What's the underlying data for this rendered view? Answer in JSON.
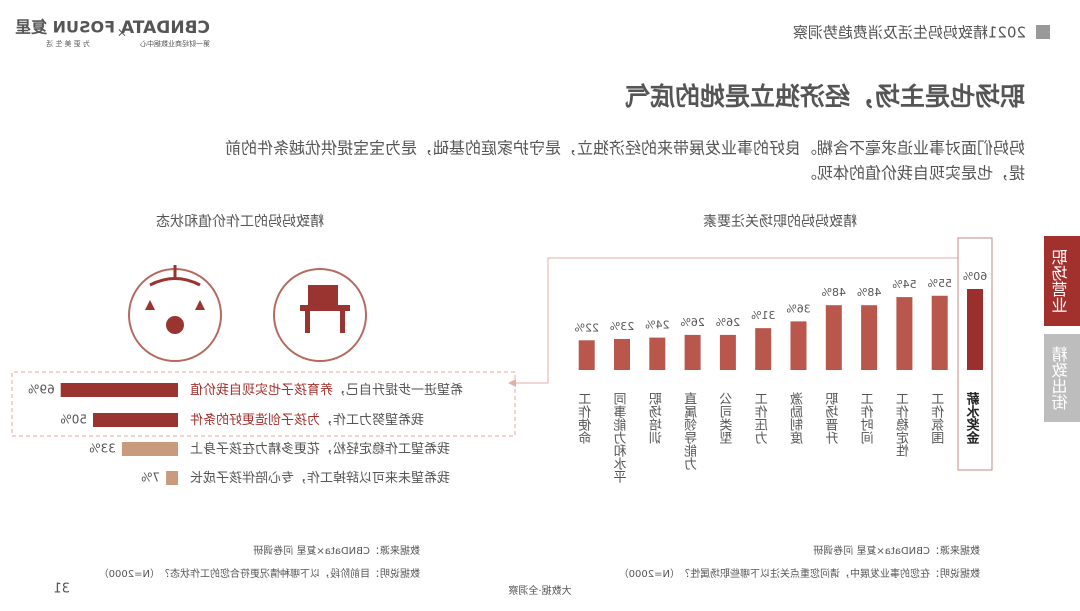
{
  "header": {
    "report_title": "2021精致妈妈生活及消费趋势洞察",
    "logo_cbndata": "CBNDATA",
    "logo_cbndata_sub": "第一财经商业数据中心",
    "logo_times": "×",
    "logo_fosun": "FOSUN 复星",
    "logo_fosun_sub": "为 更 美 生 活"
  },
  "title": "职场也是主场，经济独立是她的底气",
  "paragraph": [
    "妈妈们面对事业追求毫不含糊。良好的事业发展带来的经济独立，是守护家庭的基础，是为宝宝提供优越条件的前",
    "提，也是实现自我价值的体现。"
  ],
  "side_tabs": [
    "职场营业",
    "精致出街"
  ],
  "chart_data": [
    {
      "type": "bar",
      "title": "精致妈妈的职场关注要素",
      "categories": [
        "薪水奖金",
        "工作氛围",
        "工作稳定性",
        "工作时间",
        "职场晋升",
        "激励制度",
        "工作压力",
        "公司类型",
        "直属领导能力",
        "职场培训",
        "同事能力和水平",
        "工作使命"
      ],
      "values": [
        60,
        55,
        54,
        48,
        48,
        36,
        31,
        26,
        26,
        24,
        23,
        22
      ],
      "value_labels": [
        "60%",
        "55%",
        "54%",
        "48%",
        "48%",
        "36%",
        "31%",
        "26%",
        "26%",
        "24%",
        "23%",
        "22%"
      ],
      "color": "#b9574c",
      "highlight_color": "#9a2f2c",
      "source": "数据来源：CBNData×复星 问卷调研",
      "note": "数据说明：在您的事业发展中，请问您重点关注以下哪些职场属性？（N=2000）"
    },
    {
      "type": "hbar",
      "title": "精致妈妈的工作价值和状态",
      "categories": [
        [
          "希望进一步提升自己，",
          "养育孩子也实现自我价值"
        ],
        [
          "我希望努力工作，",
          "为孩子创造更好的条件"
        ],
        [
          "我希望工作稳定轻松，花更多精力在孩子身上"
        ],
        [
          "我希望未来可以辞掉工作，专心陪伴孩子成长"
        ]
      ],
      "values": [
        69,
        50,
        33,
        7
      ],
      "value_labels": [
        "69%",
        "50%",
        "33%",
        "7%"
      ],
      "colors": [
        "#9a3431",
        "#9a3431",
        "#c99a7b",
        "#c99a7b"
      ],
      "emphasis_color": "#a3302c",
      "source": "数据来源：CBNData×复星 问卷调研",
      "note": "数据说明：目前阶段，以下哪种情况更符合您的工作状态？（N=2000）"
    }
  ],
  "footer": {
    "slogan": "大数据·全洞察",
    "page": "31"
  }
}
